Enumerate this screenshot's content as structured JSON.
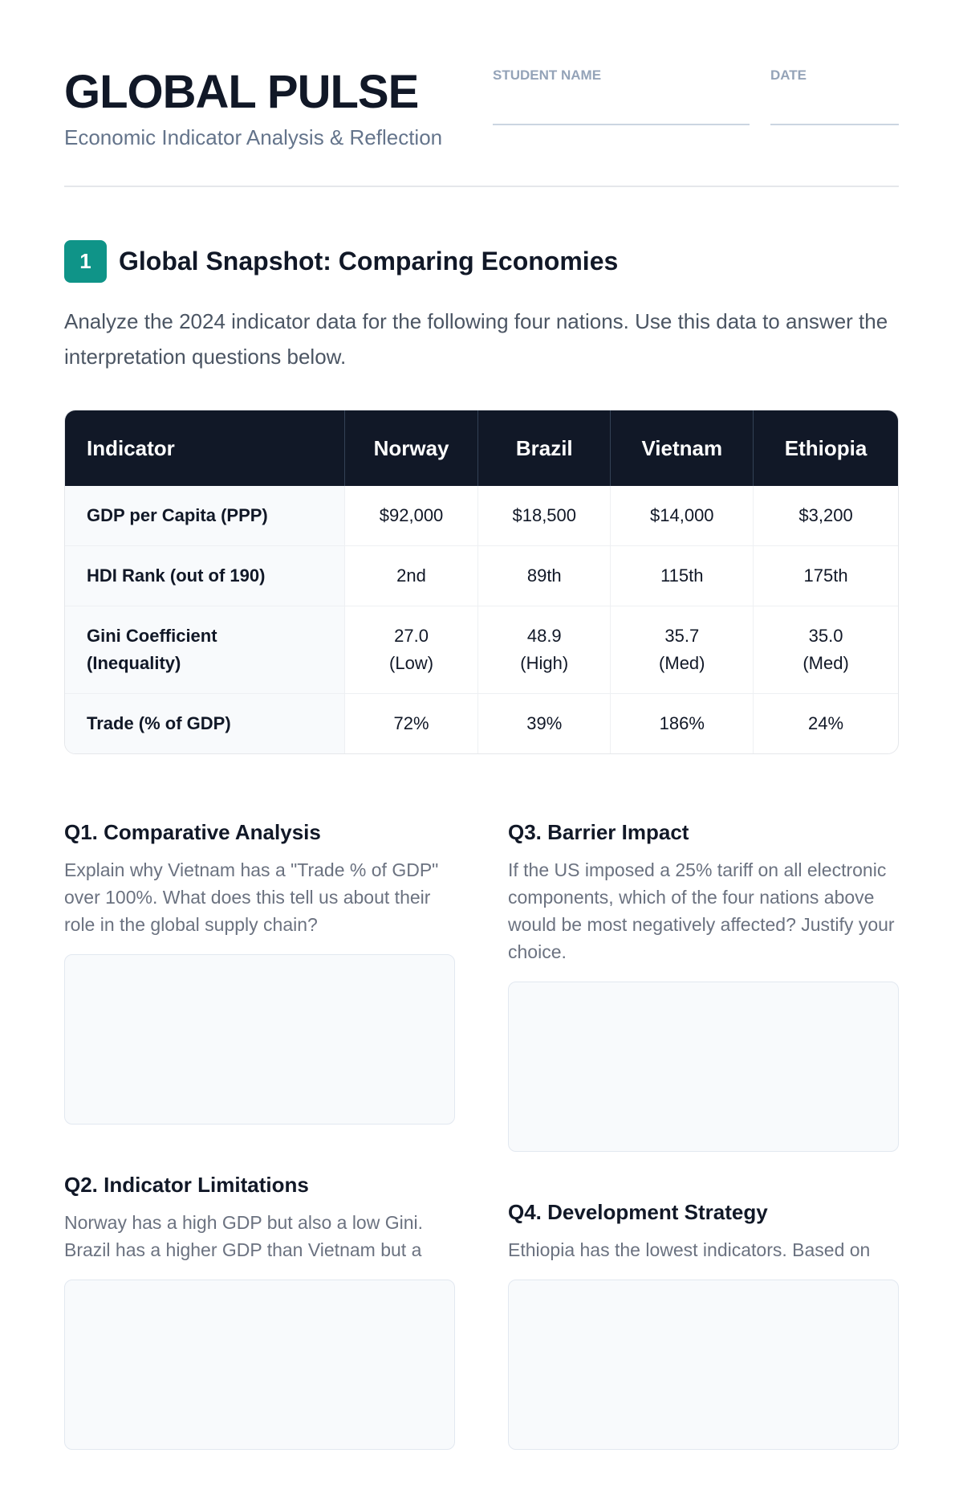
{
  "header": {
    "title": "GLOBAL PULSE",
    "subtitle": "Economic Indicator Analysis & Reflection",
    "fields": [
      "STUDENT NAME",
      "DATE"
    ]
  },
  "section": {
    "number": "1",
    "title": "Global Snapshot: Comparing Economies",
    "intro": "Analyze the 2024 indicator data for the following four nations. Use this data to answer the interpretation questions below."
  },
  "table": {
    "headers": [
      "Indicator",
      "Norway",
      "Brazil",
      "Vietnam",
      "Ethiopia"
    ],
    "rows": [
      [
        "GDP per Capita (PPP)",
        "$92,000",
        "$18,500",
        "$14,000",
        "$3,200"
      ],
      [
        "HDI Rank (out of 190)",
        "2nd",
        "89th",
        "115th",
        "175th"
      ],
      [
        "Gini Coefficient (Inequality)",
        "27.0\n(Low)",
        "48.9\n(High)",
        "35.7\n(Med)",
        "35.0\n(Med)"
      ],
      [
        "Trade (% of GDP)",
        "72%",
        "39%",
        "186%",
        "24%"
      ]
    ]
  },
  "questions": {
    "left": [
      {
        "title": "Q1. Comparative Analysis",
        "text": "Explain why Vietnam has a \"Trade % of GDP\" over 100%. What does this tell us about their role in the global supply chain?"
      },
      {
        "title": "Q2. Indicator Limitations",
        "text": "Norway has a high GDP but also a low Gini. Brazil has a higher GDP than Vietnam but a"
      }
    ],
    "right": [
      {
        "title": "Q3. Barrier Impact",
        "text": "If the US imposed a 25% tariff on all electronic components, which of the four nations above would be most negatively affected? Justify your choice."
      },
      {
        "title": "Q4. Development Strategy",
        "text": "Ethiopia has the lowest indicators. Based on"
      }
    ]
  }
}
